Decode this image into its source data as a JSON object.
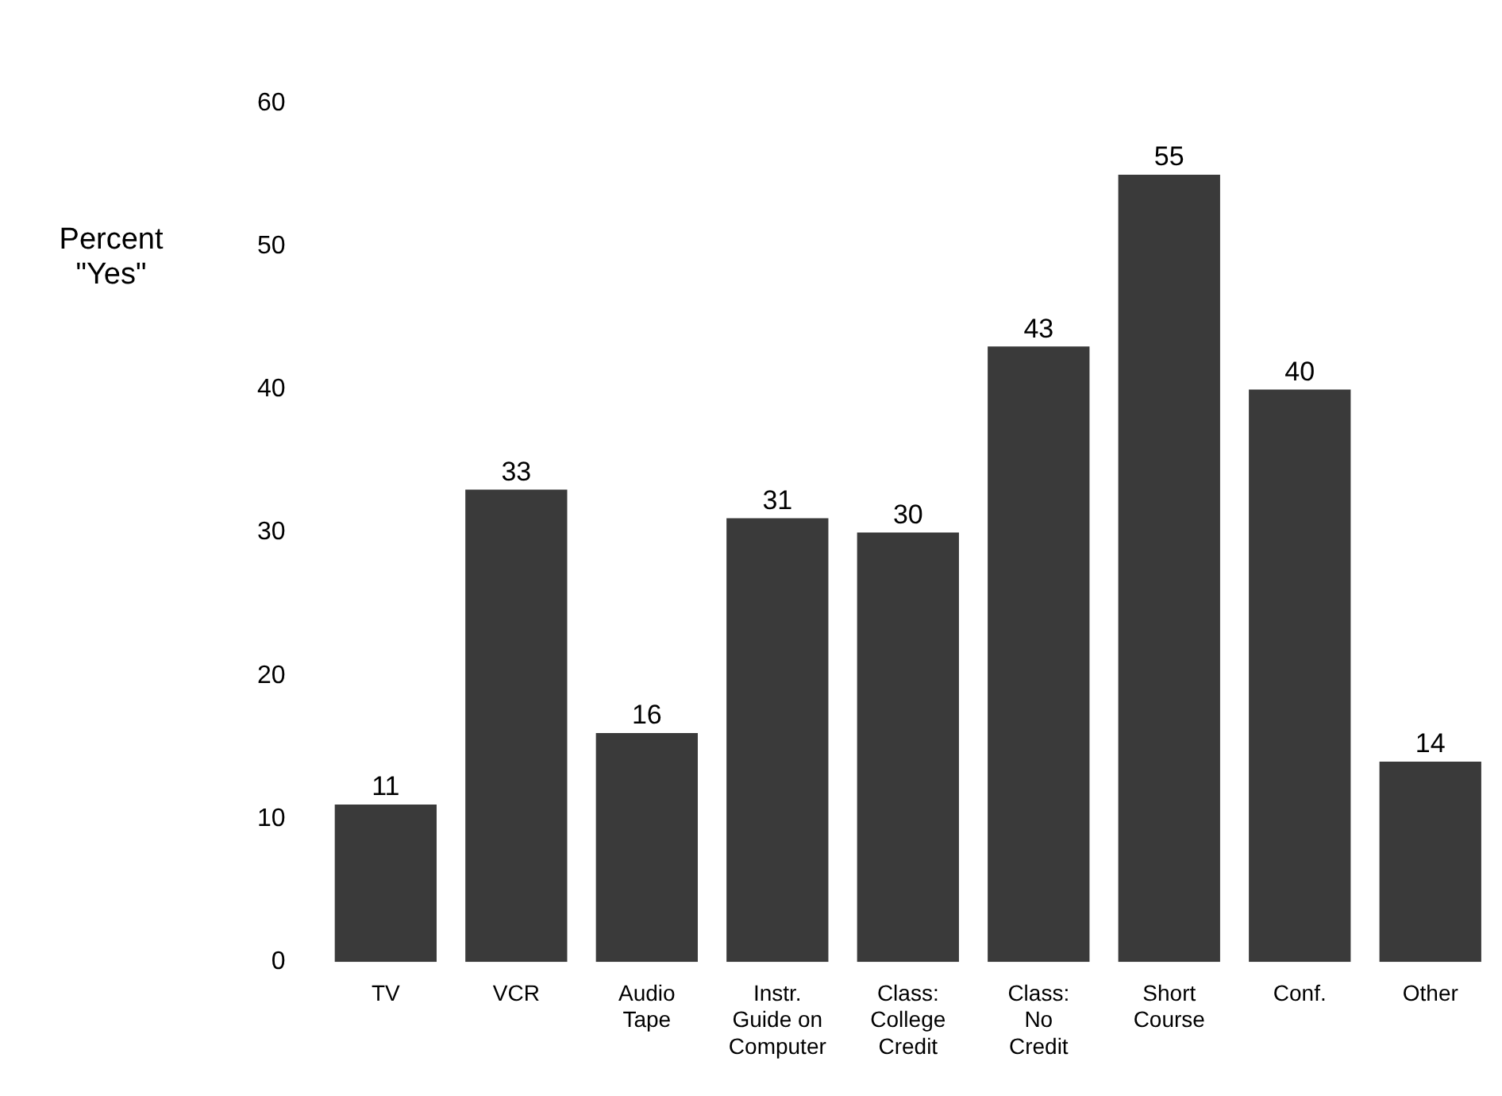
{
  "chart_data": {
    "type": "bar",
    "ylabel": "Percent\n\"Yes\"",
    "categories": [
      "TV",
      "VCR",
      "Audio\nTape",
      "Instr.\nGuide on\nComputer",
      "Class:\nCollege\nCredit",
      "Class:\nNo\nCredit",
      "Short\nCourse",
      "Conf.",
      "Other"
    ],
    "values": [
      11,
      33,
      16,
      31,
      30,
      43,
      55,
      40,
      14
    ],
    "color": "#3a3a3a",
    "ylim": [
      0,
      60
    ],
    "yticks": [
      0,
      10,
      20,
      30,
      40,
      50,
      60
    ],
    "grid": false,
    "legend": false,
    "data_labels": true
  }
}
